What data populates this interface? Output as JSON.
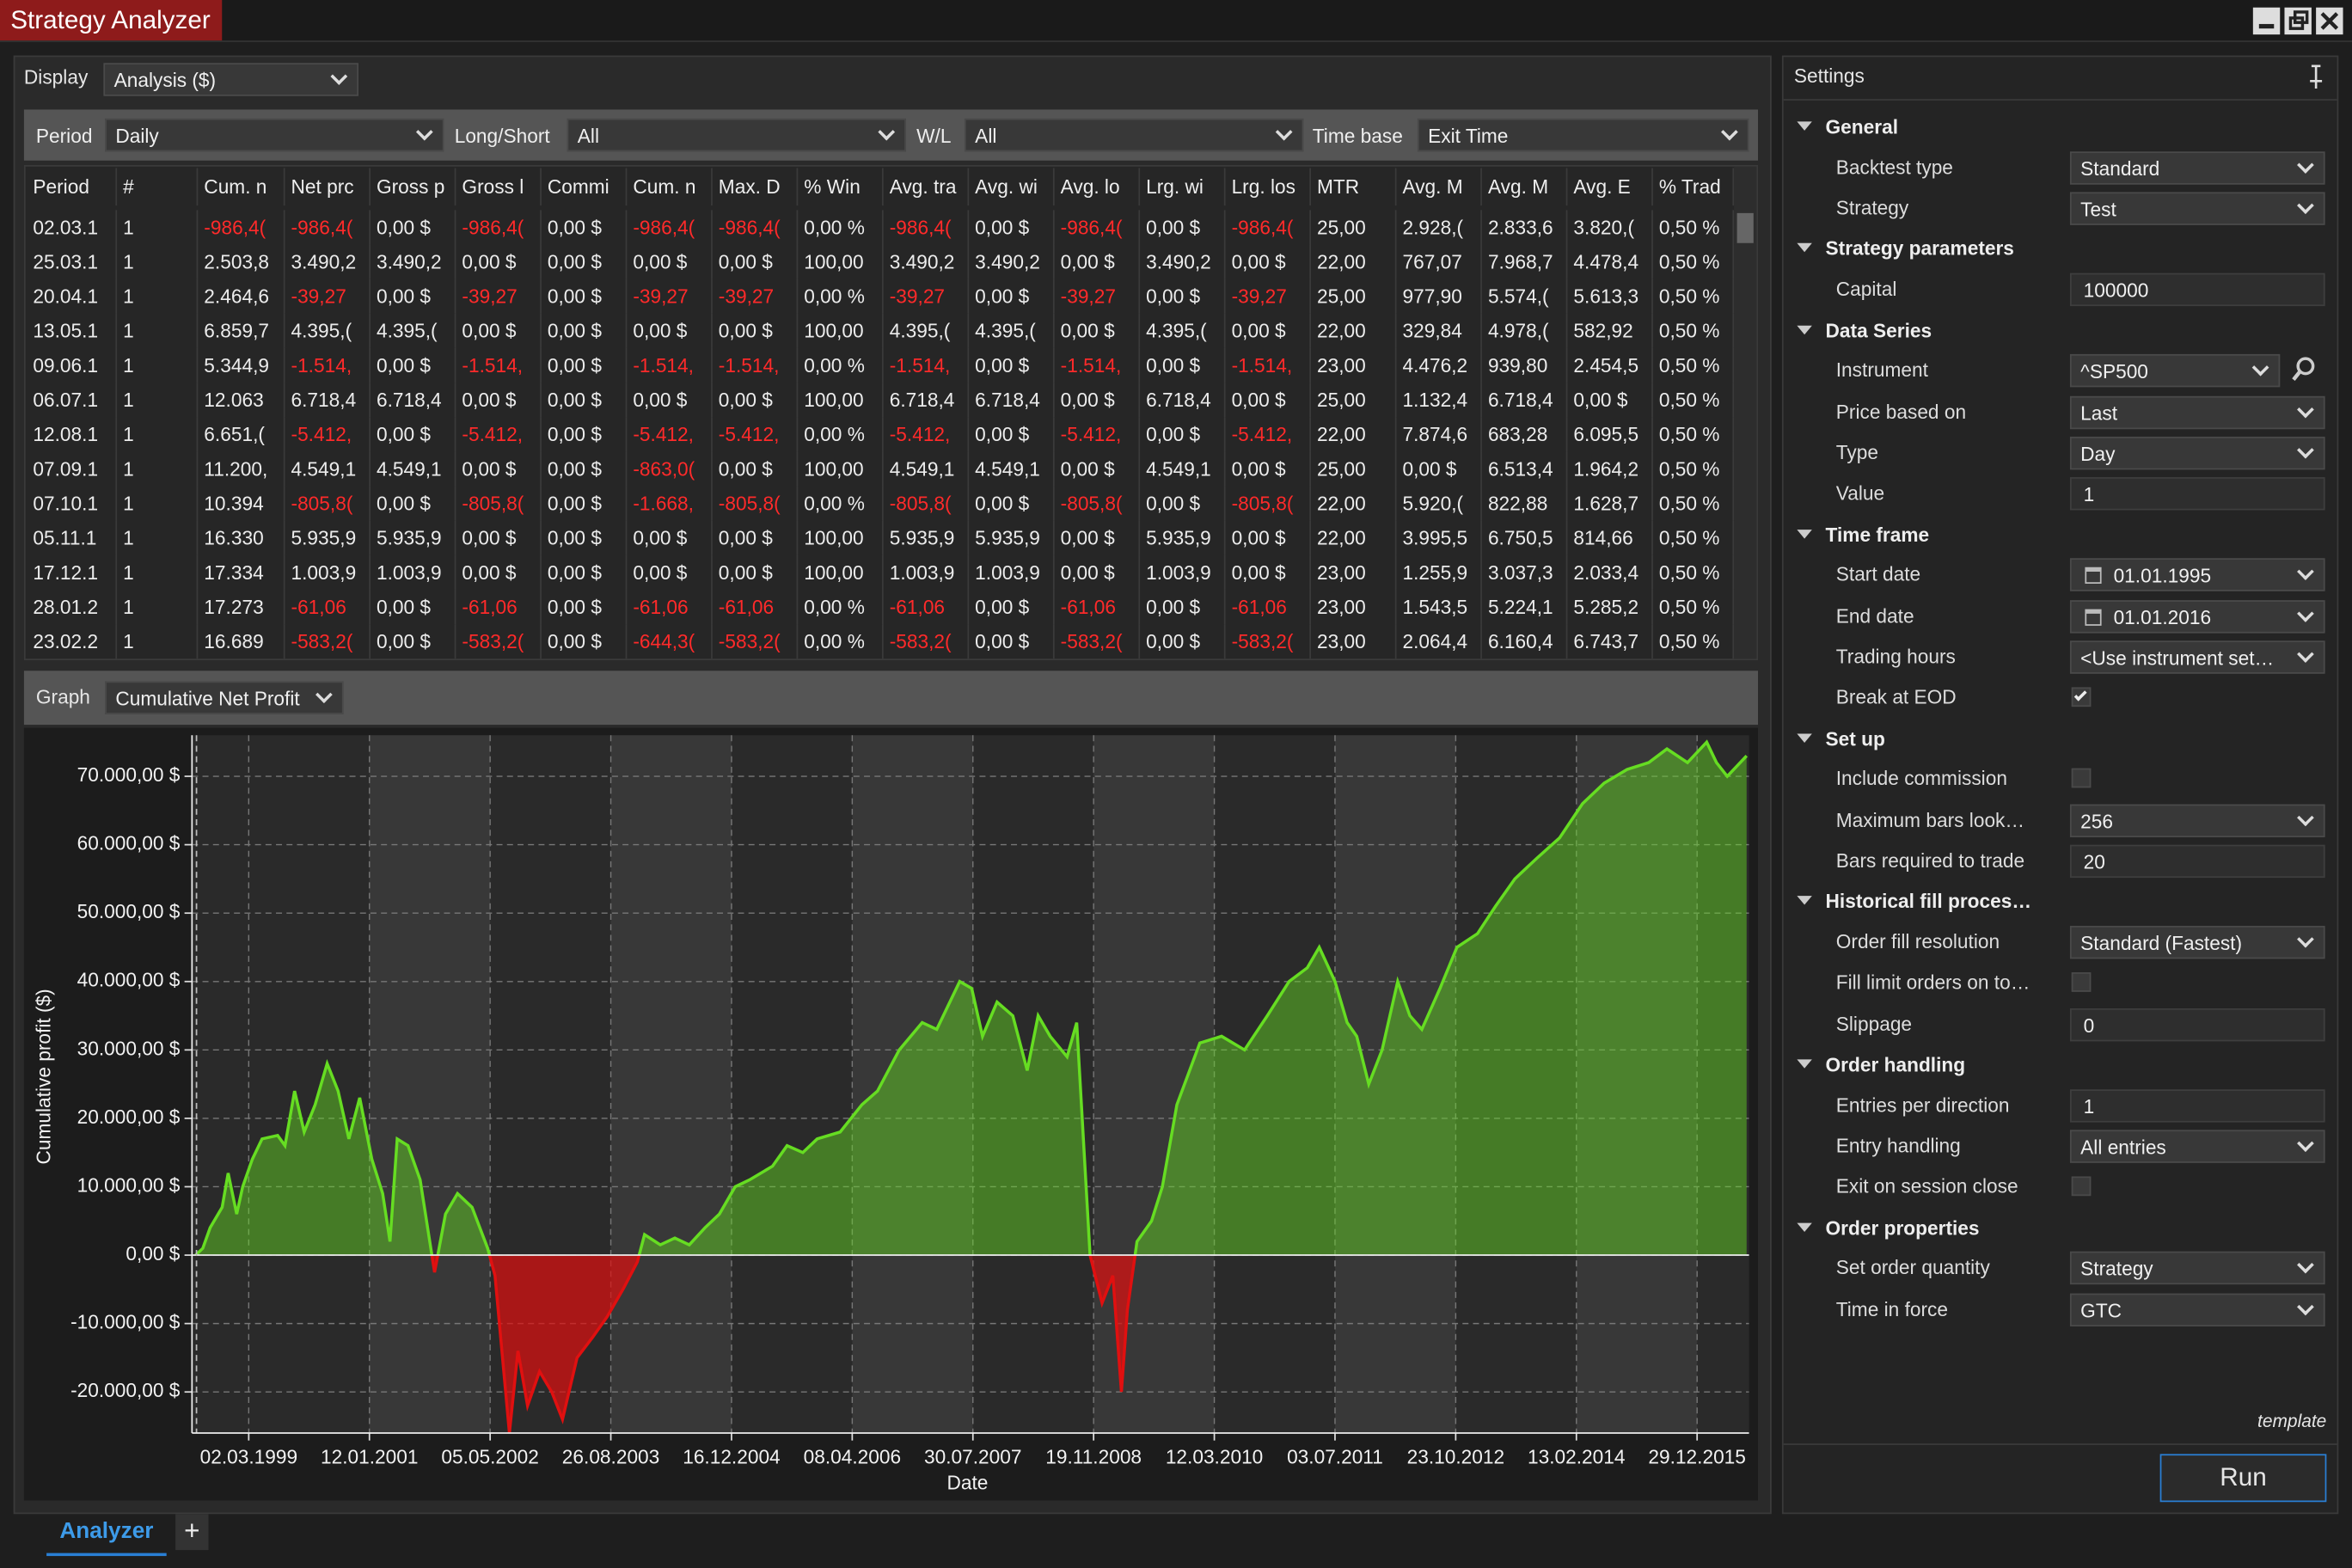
{
  "window": {
    "title": "Strategy Analyzer",
    "tab": "Analyzer",
    "add_tab": "+"
  },
  "display": {
    "label": "Display",
    "value": "Analysis ($)"
  },
  "filters": [
    {
      "label": "Period",
      "value": "Daily"
    },
    {
      "label": "Long/Short",
      "value": "All"
    },
    {
      "label": "W/L",
      "value": "All"
    },
    {
      "label": "Time base",
      "value": "Exit Time"
    }
  ],
  "table": {
    "columns": [
      "Period",
      "#",
      "Cum. n",
      "Net prc",
      "Gross p",
      "Gross l",
      "Commi",
      "Cum. n",
      "Max. D",
      "% Win",
      "Avg. tra",
      "Avg. wi",
      "Avg. lo",
      "Lrg. wi",
      "Lrg. los",
      "MTR",
      "Avg. M",
      "Avg. M",
      "Avg. E",
      "% Trad"
    ],
    "rows": [
      [
        "02.03.1",
        "1",
        "-986,4(",
        "-986,4(",
        "0,00 $",
        "-986,4(",
        "0,00 $",
        "-986,4(",
        "-986,4(",
        "0,00 %",
        "-986,4(",
        "0,00 $",
        "-986,4(",
        "0,00 $",
        "-986,4(",
        "25,00",
        "2.928,(",
        "2.833,6",
        "3.820,(",
        "0,50 %"
      ],
      [
        "25.03.1",
        "1",
        "2.503,8",
        "3.490,2",
        "3.490,2",
        "0,00 $",
        "0,00 $",
        "0,00 $",
        "0,00 $",
        "100,00",
        "3.490,2",
        "3.490,2",
        "0,00 $",
        "3.490,2",
        "0,00 $",
        "22,00",
        "767,07",
        "7.968,7",
        "4.478,4",
        "0,50 %"
      ],
      [
        "20.04.1",
        "1",
        "2.464,6",
        "-39,27",
        "0,00 $",
        "-39,27",
        "0,00 $",
        "-39,27",
        "-39,27",
        "0,00 %",
        "-39,27",
        "0,00 $",
        "-39,27",
        "0,00 $",
        "-39,27",
        "25,00",
        "977,90",
        "5.574,(",
        "5.613,3",
        "0,50 %"
      ],
      [
        "13.05.1",
        "1",
        "6.859,7",
        "4.395,(",
        "4.395,(",
        "0,00 $",
        "0,00 $",
        "0,00 $",
        "0,00 $",
        "100,00",
        "4.395,(",
        "4.395,(",
        "0,00 $",
        "4.395,(",
        "0,00 $",
        "22,00",
        "329,84",
        "4.978,(",
        "582,92",
        "0,50 %"
      ],
      [
        "09.06.1",
        "1",
        "5.344,9",
        "-1.514,",
        "0,00 $",
        "-1.514,",
        "0,00 $",
        "-1.514,",
        "-1.514,",
        "0,00 %",
        "-1.514,",
        "0,00 $",
        "-1.514,",
        "0,00 $",
        "-1.514,",
        "23,00",
        "4.476,2",
        "939,80",
        "2.454,5",
        "0,50 %"
      ],
      [
        "06.07.1",
        "1",
        "12.063",
        "6.718,4",
        "6.718,4",
        "0,00 $",
        "0,00 $",
        "0,00 $",
        "0,00 $",
        "100,00",
        "6.718,4",
        "6.718,4",
        "0,00 $",
        "6.718,4",
        "0,00 $",
        "25,00",
        "1.132,4",
        "6.718,4",
        "0,00 $",
        "0,50 %"
      ],
      [
        "12.08.1",
        "1",
        "6.651,(",
        "-5.412,",
        "0,00 $",
        "-5.412,",
        "0,00 $",
        "-5.412,",
        "-5.412,",
        "0,00 %",
        "-5.412,",
        "0,00 $",
        "-5.412,",
        "0,00 $",
        "-5.412,",
        "22,00",
        "7.874,6",
        "683,28",
        "6.095,5",
        "0,50 %"
      ],
      [
        "07.09.1",
        "1",
        "11.200,",
        "4.549,1",
        "4.549,1",
        "0,00 $",
        "0,00 $",
        "-863,0(",
        "0,00 $",
        "100,00",
        "4.549,1",
        "4.549,1",
        "0,00 $",
        "4.549,1",
        "0,00 $",
        "25,00",
        "0,00 $",
        "6.513,4",
        "1.964,2",
        "0,50 %"
      ],
      [
        "07.10.1",
        "1",
        "10.394",
        "-805,8(",
        "0,00 $",
        "-805,8(",
        "0,00 $",
        "-1.668,",
        "-805,8(",
        "0,00 %",
        "-805,8(",
        "0,00 $",
        "-805,8(",
        "0,00 $",
        "-805,8(",
        "22,00",
        "5.920,(",
        "822,88",
        "1.628,7",
        "0,50 %"
      ],
      [
        "05.11.1",
        "1",
        "16.330",
        "5.935,9",
        "5.935,9",
        "0,00 $",
        "0,00 $",
        "0,00 $",
        "0,00 $",
        "100,00",
        "5.935,9",
        "5.935,9",
        "0,00 $",
        "5.935,9",
        "0,00 $",
        "22,00",
        "3.995,5",
        "6.750,5",
        "814,66",
        "0,50 %"
      ],
      [
        "17.12.1",
        "1",
        "17.334",
        "1.003,9",
        "1.003,9",
        "0,00 $",
        "0,00 $",
        "0,00 $",
        "0,00 $",
        "100,00",
        "1.003,9",
        "1.003,9",
        "0,00 $",
        "1.003,9",
        "0,00 $",
        "23,00",
        "1.255,9",
        "3.037,3",
        "2.033,4",
        "0,50 %"
      ],
      [
        "28.01.2",
        "1",
        "17.273",
        "-61,06",
        "0,00 $",
        "-61,06",
        "0,00 $",
        "-61,06",
        "-61,06",
        "0,00 %",
        "-61,06",
        "0,00 $",
        "-61,06",
        "0,00 $",
        "-61,06",
        "23,00",
        "1.543,5",
        "5.224,1",
        "5.285,2",
        "0,50 %"
      ],
      [
        "23.02.2",
        "1",
        "16.689",
        "-583,2(",
        "0,00 $",
        "-583,2(",
        "0,00 $",
        "-644,3(",
        "-583,2(",
        "0,00 %",
        "-583,2(",
        "0,00 $",
        "-583,2(",
        "0,00 $",
        "-583,2(",
        "23,00",
        "2.064,4",
        "6.160,4",
        "6.743,7",
        "0,50 %"
      ]
    ]
  },
  "graph": {
    "label": "Graph",
    "value": "Cumulative Net Profit",
    "chart_data": {
      "type": "area",
      "x_label": "Date",
      "y_label": "Cumulative profit ($)",
      "color": "#66dd22",
      "negative_color": "#e01010",
      "grid": true,
      "x": [
        -0.02,
        0.04,
        0.1,
        0.2,
        0.25,
        0.32,
        0.37,
        0.45,
        0.53,
        0.66,
        0.72,
        0.8,
        0.88,
        0.97,
        1.07,
        1.16,
        1.25,
        1.34,
        1.44,
        1.53,
        1.59,
        1.65,
        1.74,
        1.84,
        1.96,
        2.05,
        2.15,
        2.27,
        2.4,
        2.46,
        2.58,
        2.65,
        2.73,
        2.83,
        2.93,
        3.02,
        3.14,
        3.27,
        3.39,
        3.52,
        3.64,
        3.7,
        3.83,
        3.95,
        4.07,
        4.2,
        4.32,
        4.45,
        4.57,
        4.76,
        4.88,
        5.01,
        5.13,
        5.32,
        5.5,
        5.63,
        5.81,
        6.0,
        6.12,
        6.31,
        6.41,
        6.5,
        6.62,
        6.75,
        6.87,
        6.96,
        7.06,
        7.2,
        7.28,
        7.39,
        7.49,
        7.58,
        7.65,
        7.7,
        7.78,
        7.9,
        7.99,
        8.11,
        8.3,
        8.48,
        8.67,
        8.86,
        9.04,
        9.19,
        9.29,
        9.42,
        9.52,
        9.6,
        9.7,
        9.81,
        9.94,
        10.04,
        10.14,
        10.29,
        10.43,
        10.6,
        10.75,
        10.91,
        11.09,
        11.28,
        11.47,
        11.65,
        11.84,
        12.02,
        12.17,
        12.34,
        12.5,
        12.58,
        12.67,
        12.83
      ],
      "values": [
        0,
        1000,
        4000,
        7000,
        12000,
        6000,
        10000,
        14000,
        17000,
        17500,
        16000,
        24000,
        18000,
        22000,
        28000,
        24000,
        17000,
        23000,
        14000,
        9000,
        2000,
        17000,
        16000,
        11000,
        -2500,
        6000,
        9000,
        7000,
        1000,
        -3000,
        -26000,
        -14000,
        -22000,
        -17000,
        -20000,
        -24000,
        -15000,
        -12000,
        -9000,
        -5000,
        -1000,
        3000,
        1500,
        2500,
        1500,
        4000,
        6000,
        10000,
        11000,
        13000,
        16000,
        15000,
        17000,
        18000,
        22000,
        24000,
        30000,
        34000,
        33000,
        40000,
        39000,
        32000,
        37000,
        35000,
        27000,
        35000,
        32000,
        29000,
        34000,
        0,
        -7000,
        -3000,
        -20000,
        -8000,
        2000,
        5000,
        10000,
        22000,
        31000,
        32000,
        30000,
        35000,
        40000,
        42000,
        45000,
        40000,
        34000,
        32000,
        25000,
        30000,
        40000,
        35000,
        33000,
        39000,
        45000,
        47000,
        51000,
        55000,
        58000,
        61000,
        66000,
        69000,
        71000,
        72000,
        74000,
        72000,
        75000,
        72000,
        70000,
        73000
      ],
      "xlim": [
        -0.05,
        12.85
      ],
      "xticks": [
        {
          "value": 0.42,
          "label": "02.03.1999"
        },
        {
          "value": 1.42,
          "label": "12.01.2001"
        },
        {
          "value": 2.42,
          "label": "05.05.2002"
        },
        {
          "value": 3.42,
          "label": "26.08.2003"
        },
        {
          "value": 4.42,
          "label": "16.12.2004"
        },
        {
          "value": 5.42,
          "label": "08.04.2006"
        },
        {
          "value": 6.42,
          "label": "30.07.2007"
        },
        {
          "value": 7.42,
          "label": "19.11.2008"
        },
        {
          "value": 8.42,
          "label": "12.03.2010"
        },
        {
          "value": 9.42,
          "label": "03.07.2011"
        },
        {
          "value": 10.42,
          "label": "23.10.2012"
        },
        {
          "value": 11.42,
          "label": "13.02.2014"
        },
        {
          "value": 12.42,
          "label": "29.12.2015"
        }
      ],
      "ylim": [
        -26000,
        76000
      ],
      "yticks": [
        {
          "value": -20000,
          "label": "-20.000,00 $"
        },
        {
          "value": -10000,
          "label": "-10.000,00 $"
        },
        {
          "value": 0,
          "label": "0,00 $"
        },
        {
          "value": 10000,
          "label": "10.000,00 $"
        },
        {
          "value": 20000,
          "label": "20.000,00 $"
        },
        {
          "value": 30000,
          "label": "30.000,00 $"
        },
        {
          "value": 40000,
          "label": "40.000,00 $"
        },
        {
          "value": 50000,
          "label": "50.000,00 $"
        },
        {
          "value": 60000,
          "label": "60.000,00 $"
        },
        {
          "value": 70000,
          "label": "70.000,00 $"
        }
      ]
    }
  },
  "settings": {
    "title": "Settings",
    "footer": "template",
    "run": "Run",
    "sections": [
      {
        "title": "General",
        "items": [
          {
            "label": "Backtest type",
            "control": "dropdown",
            "value": "Standard"
          },
          {
            "label": "Strategy",
            "control": "dropdown",
            "value": "Test"
          }
        ]
      },
      {
        "title": "Strategy parameters",
        "items": [
          {
            "label": "Capital",
            "control": "text",
            "value": "100000"
          }
        ]
      },
      {
        "title": "Data Series",
        "items": [
          {
            "label": "Instrument",
            "control": "dropdown",
            "value": "^SP500"
          },
          {
            "label": "Price based on",
            "control": "dropdown",
            "value": "Last"
          },
          {
            "label": "Type",
            "control": "dropdown",
            "value": "Day"
          },
          {
            "label": "Value",
            "control": "text",
            "value": "1"
          }
        ]
      },
      {
        "title": "Time frame",
        "items": [
          {
            "label": "Start date",
            "control": "date",
            "value": "01.01.1995"
          },
          {
            "label": "End date",
            "control": "date",
            "value": "01.01.2016"
          },
          {
            "label": "Trading hours",
            "control": "dropdown",
            "value": "<Use instrument set…"
          },
          {
            "label": "Break at EOD",
            "control": "checkbox",
            "checked": true
          }
        ]
      },
      {
        "title": "Set up",
        "items": [
          {
            "label": "Include commission",
            "control": "checkbox",
            "checked": false
          },
          {
            "label": "Maximum bars look…",
            "control": "dropdown",
            "value": "256"
          },
          {
            "label": "Bars required to trade",
            "control": "text",
            "value": "20"
          }
        ]
      },
      {
        "title": "Historical fill proces…",
        "items": [
          {
            "label": "Order fill resolution",
            "control": "dropdown",
            "value": "Standard (Fastest)"
          },
          {
            "label": "Fill limit orders on to…",
            "control": "checkbox",
            "checked": false
          },
          {
            "label": "Slippage",
            "control": "text",
            "value": "0"
          }
        ]
      },
      {
        "title": "Order handling",
        "items": [
          {
            "label": "Entries per direction",
            "control": "text",
            "value": "1"
          },
          {
            "label": "Entry handling",
            "control": "dropdown",
            "value": "All entries"
          },
          {
            "label": "Exit on session close",
            "control": "checkbox",
            "checked": false
          }
        ]
      },
      {
        "title": "Order properties",
        "items": [
          {
            "label": "Set order quantity",
            "control": "dropdown",
            "value": "Strategy"
          },
          {
            "label": "Time in force",
            "control": "dropdown",
            "value": "GTC"
          }
        ]
      }
    ]
  }
}
